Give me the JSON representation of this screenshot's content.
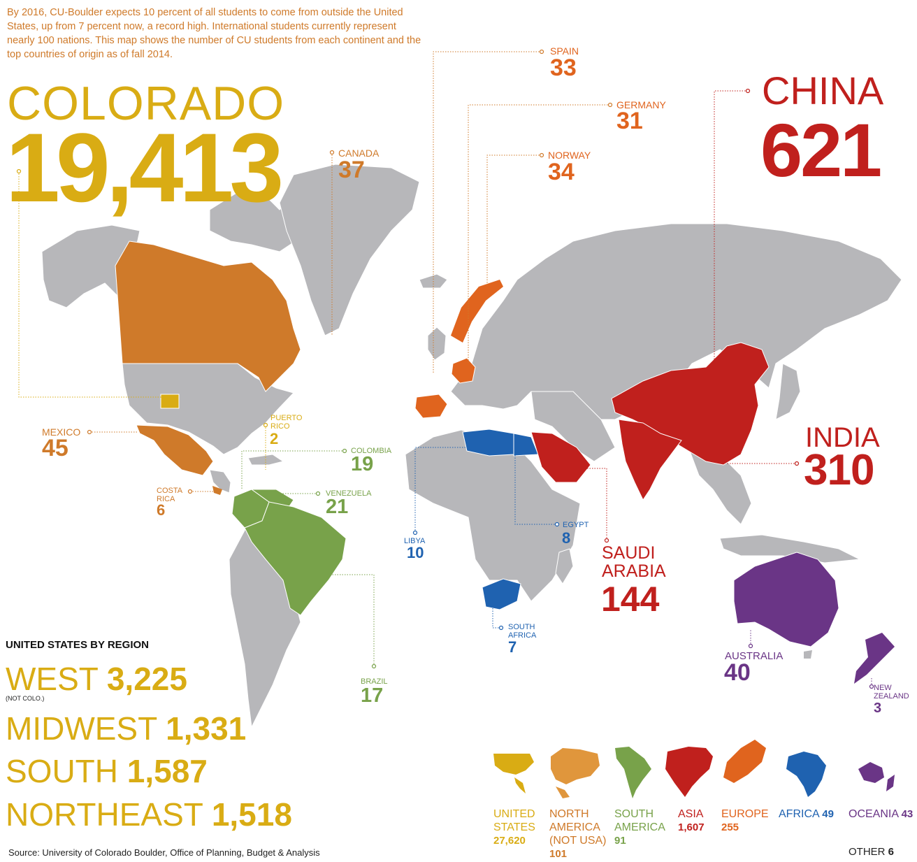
{
  "intro": "By 2016, CU-Boulder expects 10 percent of all students to come from outside the United States, up from 7 percent now, a record high. International students currently represent nearly 100 nations. This map shows the number of CU students from each continent and the top countries of origin as of fall 2014.",
  "colorado": {
    "name": "COLORADO",
    "value": "19,413"
  },
  "countries": {
    "spain": {
      "name": "SPAIN",
      "value": "33"
    },
    "germany": {
      "name": "GERMANY",
      "value": "31"
    },
    "canada": {
      "name": "CANADA",
      "value": "37"
    },
    "norway": {
      "name": "NORWAY",
      "value": "34"
    },
    "china": {
      "name": "CHINA",
      "value": "621"
    },
    "india": {
      "name": "INDIA",
      "value": "310"
    },
    "mexico": {
      "name": "MEXICO",
      "value": "45"
    },
    "puerto_rico": {
      "name1": "PUERTO",
      "name2": "RICO",
      "value": "2"
    },
    "colombia": {
      "name": "COLOMBIA",
      "value": "19"
    },
    "costa_rica": {
      "name1": "COSTA",
      "name2": "RICA",
      "value": "6"
    },
    "venezuela": {
      "name": "VENEZUELA",
      "value": "21"
    },
    "libya": {
      "name": "LIBYA",
      "value": "10"
    },
    "egypt": {
      "name": "EGYPT",
      "value": "8"
    },
    "saudi_arabia": {
      "name1": "SAUDI",
      "name2": "ARABIA",
      "value": "144"
    },
    "south_africa": {
      "name1": "SOUTH",
      "name2": "AFRICA",
      "value": "7"
    },
    "brazil": {
      "name": "BRAZIL",
      "value": "17"
    },
    "australia": {
      "name": "AUSTRALIA",
      "value": "40"
    },
    "new_zealand": {
      "name1": "NEW",
      "name2": "ZEALAND",
      "value": "3"
    }
  },
  "us_regions": {
    "title": "UNITED STATES BY REGION",
    "west": {
      "name": "WEST",
      "value": "3,225",
      "note": "(NOT COLO.)"
    },
    "midwest": {
      "name": "MIDWEST",
      "value": "1,331"
    },
    "south": {
      "name": "SOUTH",
      "value": "1,587"
    },
    "northeast": {
      "name": "NORTHEAST",
      "value": "1,518"
    }
  },
  "continents": {
    "united_states": {
      "line1": "UNITED",
      "line2": "STATES",
      "value": "27,620"
    },
    "north_america": {
      "line1": "NORTH",
      "line2": "AMERICA",
      "line3": "(NOT USA)",
      "value": "101"
    },
    "south_america": {
      "line1": "SOUTH",
      "line2": "AMERICA",
      "value": "91"
    },
    "asia": {
      "line1": "ASIA",
      "value": "1,607"
    },
    "europe": {
      "line1": "EUROPE",
      "value": "255"
    },
    "africa": {
      "line1": "AFRICA",
      "value": "49"
    },
    "oceania": {
      "line1": "OCEANIA",
      "value": "43"
    }
  },
  "other": {
    "label": "OTHER",
    "value": "6"
  },
  "source": "Source: University of Colorado Boulder, Office of Planning, Budget & Analysis",
  "colors": {
    "usa": "#d9ac14",
    "north_america": "#cf7a2a",
    "south_america": "#78a24a",
    "asia": "#c0201d",
    "europe": "#e0641e",
    "africa": "#1f62b0",
    "oceania": "#6a3586",
    "land": "#b7b7ba"
  }
}
